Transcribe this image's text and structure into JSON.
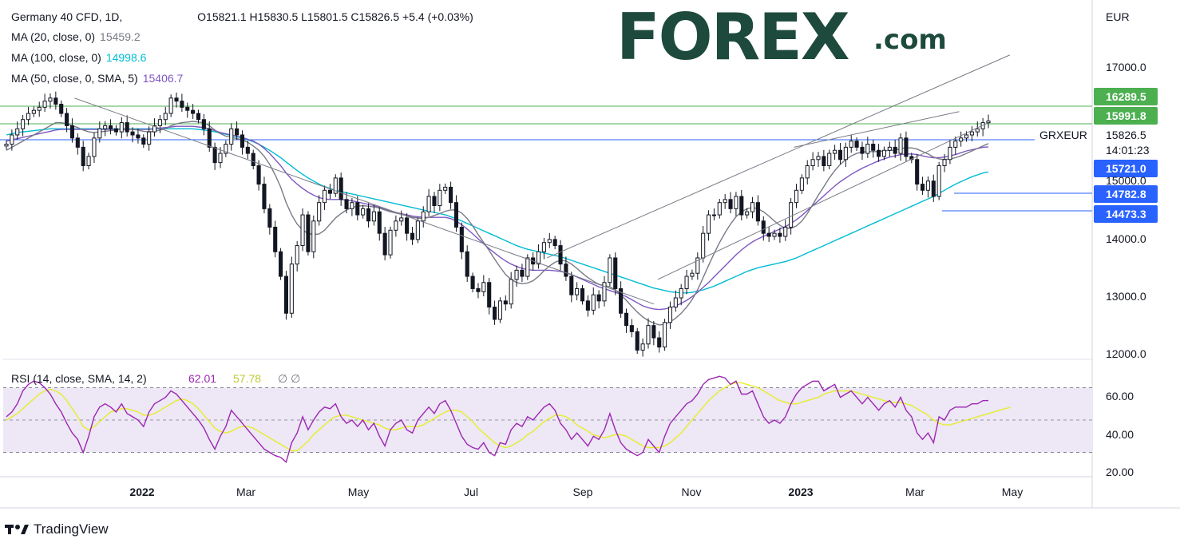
{
  "header": {
    "symbol": "Germany 40 CFD, 1D,",
    "ohlc": "O15821.1   H15830.5   L15801.5   C15826.5   +5.4 (+0.03%)"
  },
  "legend": [
    {
      "label": "MA (20, close, 0)",
      "value": "15459.2",
      "color": "#787b86"
    },
    {
      "label": "MA (100, close, 0)",
      "value": "14998.6",
      "color": "#00bcd4"
    },
    {
      "label": "MA (50, close, 0, SMA, 5)",
      "value": "15406.7",
      "color": "#7e57c2"
    }
  ],
  "brand": {
    "logo_text": "FOREX",
    "logo_suffix": ".com",
    "logo_color": "#1d4a3c",
    "accent_color": "#26a66e"
  },
  "footer": {
    "brand": "TradingView"
  },
  "colors": {
    "up": "#ffffff",
    "down": "#131722",
    "grid": "#e0e3eb",
    "green_line": "#4caf50",
    "blue_line": "#2962ff",
    "rsi_band": "#ede7f6",
    "rsi_line": "#9c27b0",
    "rsi_ma": "#e6ee2a"
  },
  "chart_data": {
    "type": "candlestick",
    "currency": "EUR",
    "price_axis": {
      "ticks": [
        "17000.0",
        "14000.0",
        "13000.0",
        "12000.0"
      ]
    },
    "ylim": [
      11950,
      17600
    ],
    "x_axis": {
      "ticks": [
        "2022",
        "Mar",
        "May",
        "Jul",
        "Sep",
        "Nov",
        "2023",
        "Mar",
        "May"
      ]
    },
    "last_price": {
      "label": "GRXEUR",
      "value": "15826.5",
      "countdown": "14:01:23"
    },
    "levels": [
      {
        "value": "16289.5",
        "color": "#4caf50"
      },
      {
        "value": "15991.8",
        "color": "#4caf50"
      },
      {
        "value": "15721.0",
        "color": "#2962ff"
      },
      {
        "value": "15000.0",
        "color": "#131722"
      },
      {
        "value": "14782.8",
        "color": "#2962ff"
      },
      {
        "value": "14473.3",
        "color": "#2962ff"
      }
    ],
    "series_close": [
      15450,
      15600,
      15700,
      15850,
      15950,
      16000,
      16050,
      16150,
      16200,
      16100,
      15950,
      15750,
      15550,
      15400,
      15100,
      15250,
      15550,
      15700,
      15750,
      15700,
      15650,
      15800,
      15650,
      15600,
      15550,
      15450,
      15650,
      15750,
      15850,
      15950,
      16200,
      16150,
      16050,
      16000,
      15950,
      15850,
      15700,
      15400,
      15150,
      15300,
      15450,
      15700,
      15600,
      15400,
      15300,
      15100,
      14800,
      14400,
      14100,
      13700,
      13300,
      12700,
      13500,
      13800,
      14300,
      13700,
      14200,
      14500,
      14700,
      14650,
      14900,
      14550,
      14400,
      14500,
      14300,
      14400,
      14200,
      14350,
      14000,
      13650,
      14050,
      14200,
      14250,
      14000,
      13900,
      14200,
      14350,
      14600,
      14450,
      14700,
      14750,
      14500,
      14100,
      13700,
      13300,
      13100,
      13050,
      13200,
      12800,
      12600,
      12900,
      12850,
      13250,
      13400,
      13300,
      13600,
      13500,
      13700,
      13850,
      13900,
      13800,
      13500,
      13300,
      13000,
      13100,
      12900,
      12750,
      13000,
      12900,
      13200,
      13600,
      13100,
      12700,
      12500,
      12400,
      12100,
      12200,
      12500,
      12300,
      12150,
      12550,
      12800,
      12950,
      13100,
      13300,
      13350,
      13600,
      14000,
      14300,
      14300,
      14500,
      14550,
      14400,
      14600,
      14300,
      14350,
      14500,
      14200,
      14000,
      13950,
      14000,
      13950,
      14100,
      14500,
      14700,
      14900,
      15100,
      15200,
      15250,
      15100,
      15300,
      15350,
      15200,
      15400,
      15500,
      15400,
      15300,
      15450,
      15350,
      15250,
      15350,
      15400,
      15300,
      15550,
      15250,
      15200,
      14800,
      14700,
      14850,
      14600,
      15100,
      15200,
      15400,
      15500,
      15550,
      15600,
      15650,
      15700,
      15800,
      15826.5
    ],
    "ma20": [
      15350,
      15400,
      15450,
      15500,
      15550,
      15600,
      15650,
      15700,
      15750,
      15800,
      15800,
      15780,
      15750,
      15720,
      15680,
      15650,
      15640,
      15650,
      15660,
      15670,
      15680,
      15700,
      15700,
      15690,
      15680,
      15660,
      15650,
      15660,
      15680,
      15700,
      15750,
      15780,
      15800,
      15810,
      15820,
      15810,
      15800,
      15750,
      15680,
      15620,
      15580,
      15560,
      15540,
      15520,
      15480,
      15420,
      15350,
      15250,
      15120,
      14950,
      14750,
      14500,
      14300,
      14150,
      14050,
      14000,
      13980,
      13990,
      14050,
      14150,
      14250,
      14320,
      14380,
      14420,
      14440,
      14450,
      14440,
      14430,
      14410,
      14380,
      14350,
      14330,
      14310,
      14290,
      14260,
      14250,
      14240,
      14260,
      14290,
      14320,
      14360,
      14380,
      14380,
      14330,
      14240,
      14120,
      13980,
      13850,
      13720,
      13580,
      13450,
      13330,
      13250,
      13200,
      13180,
      13190,
      13230,
      13300,
      13390,
      13470,
      13530,
      13560,
      13550,
      13500,
      13430,
      13350,
      13280,
      13220,
      13170,
      13150,
      13130,
      13080,
      13000,
      12910,
      12810,
      12720,
      12640,
      12580,
      12540,
      12510,
      12520,
      12560,
      12620,
      12700,
      12800,
      12920,
      13080,
      13280,
      13480,
      13670,
      13850,
      14010,
      14150,
      14270,
      14350,
      14400,
      14420,
      14400,
      14350,
      14280,
      14200,
      14130,
      14080,
      14080,
      14120,
      14200,
      14320,
      14470,
      14620,
      14760,
      14900,
      15020,
      15120,
      15200,
      15260,
      15300,
      15320,
      15330,
      15330,
      15330,
      15340,
      15350,
      15350,
      15380,
      15390,
      15390,
      15370,
      15330,
      15290,
      15240,
      15210,
      15200,
      15210,
      15230,
      15260,
      15300,
      15340,
      15380,
      15420,
      15459.2
    ],
    "ma50": [
      15500,
      15520,
      15540,
      15560,
      15580,
      15600,
      15620,
      15640,
      15660,
      15680,
      15690,
      15690,
      15690,
      15690,
      15690,
      15690,
      15690,
      15690,
      15690,
      15690,
      15690,
      15690,
      15690,
      15690,
      15690,
      15690,
      15690,
      15700,
      15710,
      15720,
      15730,
      15740,
      15740,
      15740,
      15740,
      15730,
      15720,
      15700,
      15670,
      15640,
      15620,
      15600,
      15580,
      15560,
      15530,
      15500,
      15450,
      15380,
      15300,
      15200,
      15100,
      14980,
      14880,
      14800,
      14730,
      14670,
      14620,
      14580,
      14560,
      14550,
      14550,
      14550,
      14540,
      14530,
      14510,
      14490,
      14470,
      14450,
      14420,
      14390,
      14360,
      14340,
      14320,
      14300,
      14280,
      14270,
      14260,
      14260,
      14260,
      14260,
      14260,
      14240,
      14200,
      14140,
      14070,
      13990,
      13910,
      13830,
      13750,
      13680,
      13610,
      13550,
      13500,
      13460,
      13430,
      13410,
      13400,
      13400,
      13400,
      13400,
      13390,
      13380,
      13360,
      13330,
      13290,
      13250,
      13210,
      13170,
      13130,
      13100,
      13070,
      13040,
      13010,
      12970,
      12920,
      12870,
      12820,
      12790,
      12770,
      12760,
      12770,
      12790,
      12820,
      12860,
      12910,
      12970,
      13040,
      13120,
      13200,
      13290,
      13380,
      13470,
      13560,
      13650,
      13730,
      13800,
      13860,
      13910,
      13950,
      13990,
      14030,
      14070,
      14110,
      14160,
      14220,
      14290,
      14370,
      14450,
      14530,
      14610,
      14690,
      14770,
      14840,
      14900,
      14960,
      15010,
      15060,
      15100,
      15140,
      15180,
      15210,
      15240,
      15260,
      15280,
      15290,
      15290,
      15280,
      15260,
      15240,
      15230,
      15230,
      15240,
      15260,
      15280,
      15310,
      15340,
      15360,
      15380,
      15400,
      15406.7
    ],
    "ma100": [
      15600,
      15620,
      15640,
      15650,
      15660,
      15670,
      15680,
      15690,
      15700,
      15700,
      15700,
      15700,
      15700,
      15700,
      15700,
      15700,
      15700,
      15700,
      15700,
      15700,
      15700,
      15700,
      15700,
      15700,
      15700,
      15700,
      15700,
      15700,
      15700,
      15700,
      15700,
      15700,
      15700,
      15700,
      15700,
      15690,
      15680,
      15670,
      15650,
      15630,
      15610,
      15590,
      15570,
      15550,
      15520,
      15490,
      15450,
      15400,
      15350,
      15290,
      15230,
      15160,
      15090,
      15020,
      14960,
      14900,
      14850,
      14800,
      14760,
      14730,
      14700,
      14680,
      14660,
      14640,
      14620,
      14600,
      14580,
      14560,
      14540,
      14520,
      14500,
      14480,
      14460,
      14440,
      14420,
      14400,
      14380,
      14360,
      14340,
      14320,
      14300,
      14270,
      14240,
      14200,
      14160,
      14120,
      14080,
      14040,
      14000,
      13960,
      13920,
      13880,
      13840,
      13800,
      13770,
      13740,
      13720,
      13700,
      13680,
      13660,
      13640,
      13620,
      13590,
      13560,
      13530,
      13500,
      13470,
      13440,
      13410,
      13380,
      13350,
      13320,
      13290,
      13260,
      13230,
      13200,
      13170,
      13140,
      13110,
      13090,
      13070,
      13050,
      13040,
      13030,
      13030,
      13040,
      13060,
      13080,
      13110,
      13140,
      13180,
      13220,
      13260,
      13300,
      13340,
      13380,
      13410,
      13440,
      13460,
      13480,
      13500,
      13520,
      13540,
      13570,
      13600,
      13640,
      13680,
      13720,
      13760,
      13800,
      13840,
      13880,
      13920,
      13960,
      14000,
      14040,
      14080,
      14120,
      14160,
      14200,
      14240,
      14280,
      14320,
      14360,
      14400,
      14440,
      14480,
      14520,
      14560,
      14600,
      14650,
      14700,
      14750,
      14800,
      14840,
      14880,
      14920,
      14950,
      14980,
      14998.6
    ],
    "trendlines": [
      {
        "from": [
          "2022-01-05",
          16200
        ],
        "to": [
          "2022-10-30",
          12850
        ],
        "name": "downtrend"
      },
      {
        "from": [
          "2022-09-05",
          13600
        ],
        "to": [
          "2023-05-01",
          16900
        ],
        "name": "channel-upper"
      },
      {
        "from": [
          "2022-11-01",
          13250
        ],
        "to": [
          "2023-04-20",
          15800
        ],
        "name": "channel-lower"
      },
      {
        "from": [
          "2023-01-10",
          15400
        ],
        "to": [
          "2023-04-05",
          15980
        ],
        "name": "channel-mid"
      }
    ],
    "rsi": {
      "label": "RSI (14, close, SMA, 14, 2)",
      "value": "62.01",
      "ma_value": "57.78",
      "extra": "∅  ∅",
      "ticks": [
        "60.00",
        "40.00",
        "20.00"
      ],
      "ylim": [
        15,
        85
      ],
      "band": [
        30,
        70
      ],
      "values": [
        52,
        55,
        60,
        68,
        72,
        74,
        73,
        70,
        66,
        60,
        55,
        48,
        42,
        38,
        30,
        40,
        52,
        58,
        60,
        58,
        55,
        60,
        54,
        52,
        50,
        46,
        55,
        60,
        62,
        64,
        68,
        66,
        62,
        58,
        54,
        50,
        45,
        38,
        32,
        40,
        46,
        56,
        52,
        48,
        44,
        40,
        36,
        32,
        30,
        28,
        27,
        24,
        36,
        42,
        52,
        44,
        50,
        55,
        58,
        57,
        60,
        52,
        48,
        50,
        46,
        50,
        44,
        48,
        40,
        34,
        44,
        48,
        50,
        44,
        42,
        50,
        54,
        58,
        54,
        60,
        62,
        56,
        48,
        40,
        35,
        33,
        32,
        36,
        30,
        28,
        36,
        35,
        44,
        48,
        46,
        52,
        50,
        54,
        58,
        60,
        56,
        48,
        44,
        38,
        42,
        38,
        34,
        40,
        38,
        44,
        54,
        44,
        36,
        32,
        30,
        28,
        30,
        38,
        34,
        30,
        40,
        48,
        52,
        56,
        60,
        62,
        66,
        72,
        75,
        76,
        77,
        76,
        72,
        74,
        66,
        66,
        68,
        60,
        52,
        48,
        50,
        48,
        52,
        60,
        66,
        70,
        72,
        74,
        74,
        68,
        70,
        72,
        64,
        66,
        68,
        64,
        60,
        64,
        60,
        56,
        60,
        62,
        58,
        64,
        56,
        52,
        42,
        38,
        42,
        36,
        52,
        50,
        56,
        58,
        58,
        58,
        60,
        60,
        62,
        62.01
      ],
      "ma_values": [
        50,
        52,
        54,
        57,
        60,
        63,
        66,
        68,
        69,
        68,
        66,
        62,
        57,
        52,
        46,
        44,
        46,
        49,
        52,
        55,
        56,
        57,
        57,
        56,
        55,
        53,
        53,
        54,
        56,
        58,
        60,
        62,
        63,
        62,
        60,
        57,
        53,
        49,
        45,
        43,
        42,
        43,
        45,
        46,
        46,
        45,
        43,
        41,
        39,
        37,
        35,
        33,
        31,
        31,
        34,
        37,
        41,
        44,
        47,
        50,
        52,
        53,
        53,
        52,
        51,
        50,
        49,
        48,
        47,
        45,
        44,
        44,
        45,
        46,
        46,
        46,
        47,
        49,
        51,
        53,
        55,
        56,
        56,
        55,
        52,
        49,
        45,
        42,
        39,
        36,
        34,
        33,
        34,
        36,
        38,
        41,
        43,
        46,
        49,
        51,
        53,
        53,
        52,
        50,
        47,
        45,
        43,
        41,
        40,
        39,
        40,
        41,
        41,
        40,
        38,
        36,
        34,
        33,
        33,
        33,
        34,
        36,
        39,
        42,
        46,
        50,
        54,
        58,
        62,
        65,
        68,
        70,
        72,
        73,
        73,
        72,
        71,
        70,
        68,
        66,
        64,
        62,
        61,
        60,
        60,
        61,
        62,
        63,
        64,
        66,
        67,
        68,
        68,
        68,
        68,
        67,
        66,
        65,
        64,
        63,
        62,
        61,
        61,
        61,
        60,
        59,
        57,
        55,
        53,
        50,
        48,
        47,
        47,
        48,
        49,
        50,
        51,
        52,
        53,
        54,
        55,
        56,
        57,
        57.78
      ]
    }
  }
}
